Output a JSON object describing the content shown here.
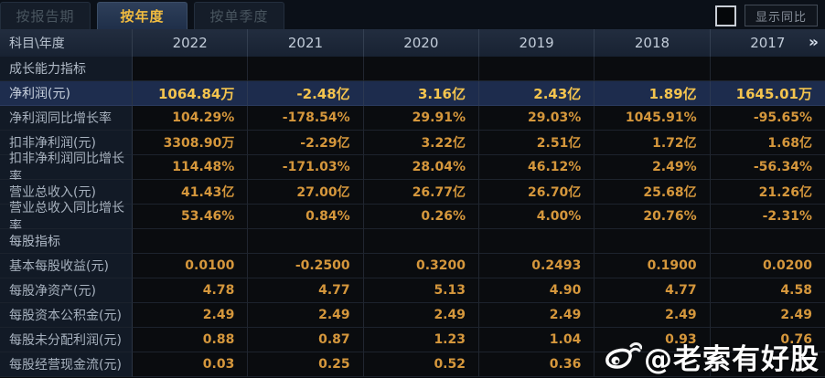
{
  "tabs": [
    {
      "label": "按报告期",
      "active": false
    },
    {
      "label": "按年度",
      "active": true
    },
    {
      "label": "按单季度",
      "active": false
    }
  ],
  "controls": {
    "show_yoy_label": "显示同比",
    "checkbox_checked": false
  },
  "table": {
    "corner_header": "科目\\年度",
    "year_columns": [
      "2022",
      "2021",
      "2020",
      "2019",
      "2018",
      "2017"
    ],
    "more_columns_glyph": "»",
    "rows": [
      {
        "type": "section",
        "label": "成长能力指标",
        "values": [
          "",
          "",
          "",
          "",
          "",
          ""
        ]
      },
      {
        "type": "data",
        "highlight": true,
        "label": "净利润(元)",
        "values": [
          "1064.84万",
          "-2.48亿",
          "3.16亿",
          "2.43亿",
          "1.89亿",
          "1645.01万"
        ]
      },
      {
        "type": "data",
        "label": "净利润同比增长率",
        "values": [
          "104.29%",
          "-178.54%",
          "29.91%",
          "29.03%",
          "1045.91%",
          "-95.65%"
        ]
      },
      {
        "type": "data",
        "label": "扣非净利润(元)",
        "values": [
          "3308.90万",
          "-2.29亿",
          "3.22亿",
          "2.51亿",
          "1.72亿",
          "1.68亿"
        ]
      },
      {
        "type": "data",
        "label": "扣非净利润同比增长率",
        "values": [
          "114.48%",
          "-171.03%",
          "28.04%",
          "46.12%",
          "2.49%",
          "-56.34%"
        ]
      },
      {
        "type": "data",
        "label": "营业总收入(元)",
        "values": [
          "41.43亿",
          "27.00亿",
          "26.77亿",
          "26.70亿",
          "25.68亿",
          "21.26亿"
        ]
      },
      {
        "type": "data",
        "label": "营业总收入同比增长率",
        "values": [
          "53.46%",
          "0.84%",
          "0.26%",
          "4.00%",
          "20.76%",
          "-2.31%"
        ]
      },
      {
        "type": "section",
        "label": "每股指标",
        "values": [
          "",
          "",
          "",
          "",
          "",
          ""
        ]
      },
      {
        "type": "data",
        "label": "基本每股收益(元)",
        "values": [
          "0.0100",
          "-0.2500",
          "0.3200",
          "0.2493",
          "0.1900",
          "0.0200"
        ]
      },
      {
        "type": "data",
        "label": "每股净资产(元)",
        "values": [
          "4.78",
          "4.77",
          "5.13",
          "4.90",
          "4.77",
          "4.58"
        ]
      },
      {
        "type": "data",
        "label": "每股资本公积金(元)",
        "values": [
          "2.49",
          "2.49",
          "2.49",
          "2.49",
          "2.49",
          "2.49"
        ]
      },
      {
        "type": "data",
        "label": "每股未分配利润(元)",
        "values": [
          "0.88",
          "0.87",
          "1.23",
          "1.04",
          "0.93",
          "0.76"
        ]
      },
      {
        "type": "data",
        "label": "每股经营现金流(元)",
        "values": [
          "0.03",
          "0.25",
          "0.52",
          "0.36",
          "",
          ""
        ]
      }
    ]
  },
  "watermark": {
    "text": "@老索有好股",
    "icon": "weibo-icon"
  },
  "colors": {
    "value_gold": "#d5973c",
    "highlight_gold": "#f4c44e",
    "highlight_row_bg": "#1d2c4d",
    "header_bg": "#1b2433",
    "label_col_bg": "#121a26",
    "active_tab_text": "#f1bc40"
  }
}
